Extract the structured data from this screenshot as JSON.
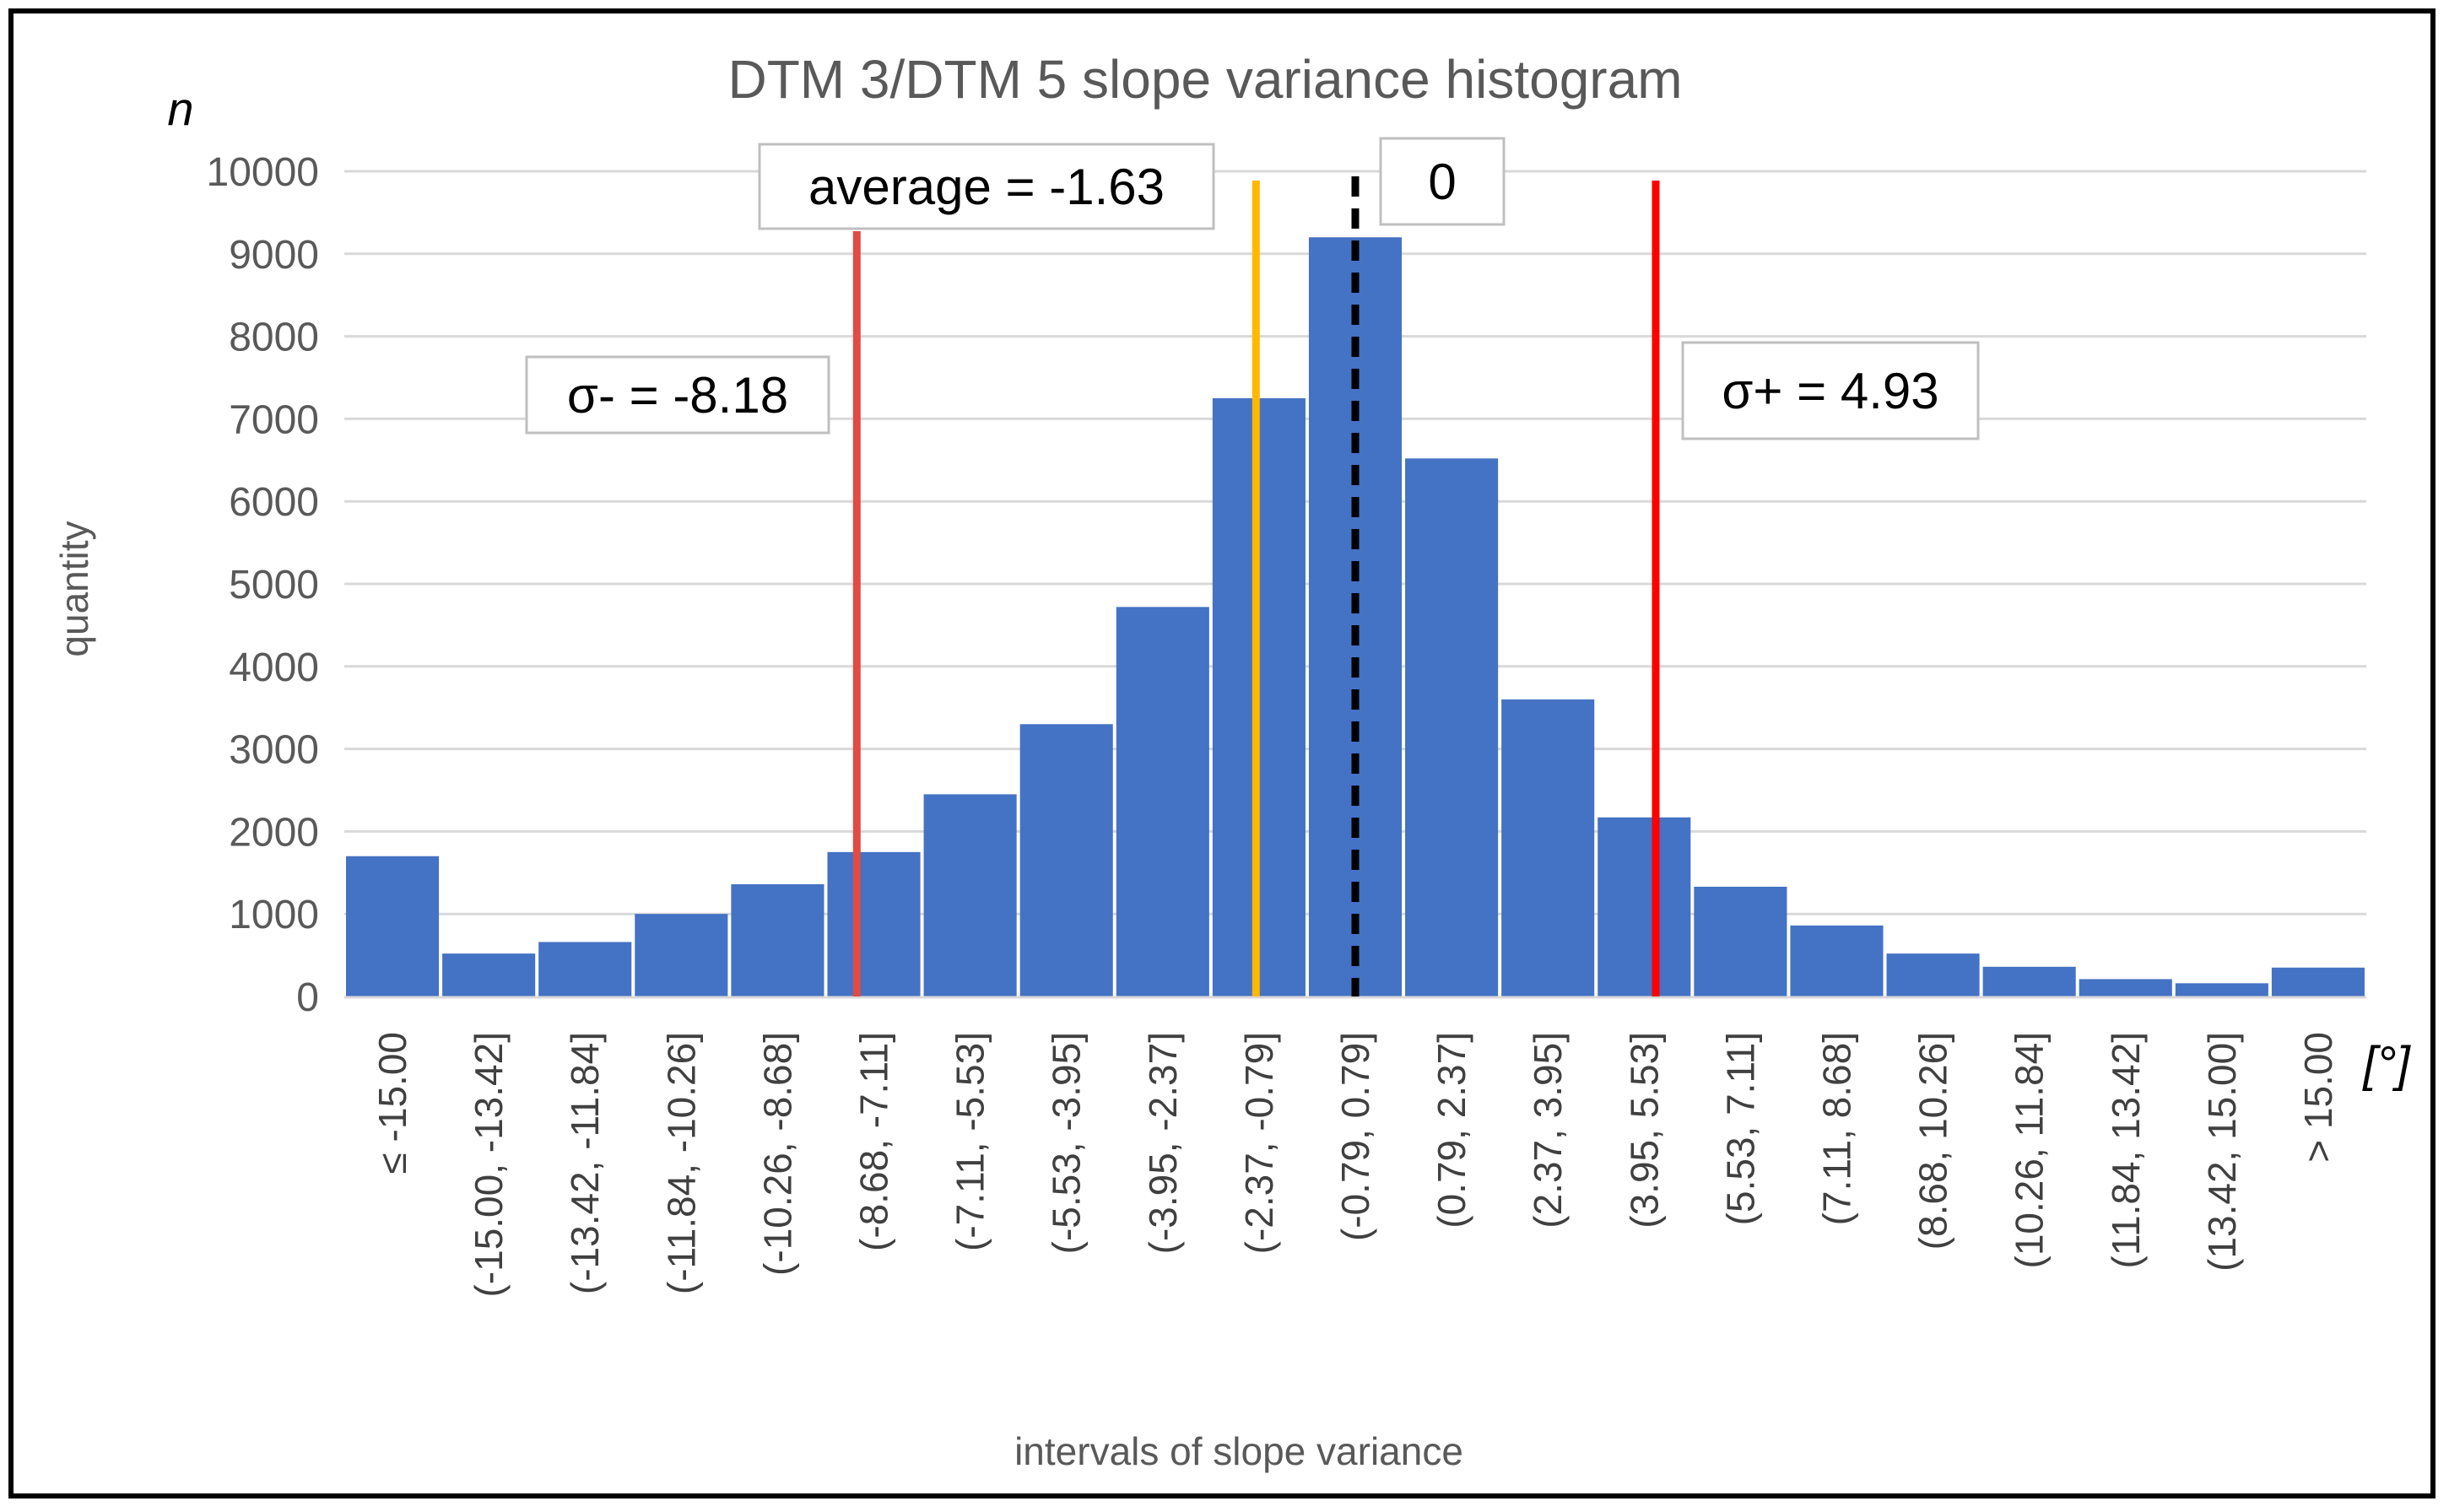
{
  "chart_data": {
    "type": "bar",
    "title": "DTM 3/DTM 5 slope variance histogram",
    "xlabel": "intervals of slope variance",
    "ylabel": "quantity",
    "y_unit_label": "n",
    "x_unit_label": "[°]",
    "ylim": [
      0,
      10000
    ],
    "yticks": [
      0,
      1000,
      2000,
      3000,
      4000,
      5000,
      6000,
      7000,
      8000,
      9000,
      10000
    ],
    "grid": true,
    "categories": [
      "≤ -15.00",
      "(-15.00, -13.42]",
      "(-13.42, -11.84]",
      "(-11.84, -10.26]",
      "(-10.26, -8.68]",
      "(-8.68, -7.11]",
      "(-7.11, -5.53]",
      "(-5.53, -3.95]",
      "(-3.95, -2.37]",
      "(-2.37, -0.79]",
      "(-0.79, 0.79]",
      "(0.79, 2.37]",
      "(2.37, 3.95]",
      "(3.95, 5.53]",
      "(5.53, 7.11]",
      "(7.11, 8.68]",
      "(8.68, 10.26]",
      "(10.26, 11.84]",
      "(11.84, 13.42]",
      "(13.42, 15.00]",
      "> 15.00"
    ],
    "values": [
      1700,
      520,
      660,
      1000,
      1360,
      1750,
      2450,
      3300,
      4720,
      7250,
      9200,
      6520,
      3600,
      2170,
      1330,
      860,
      520,
      360,
      210,
      160,
      350
    ],
    "color": "#4472C4",
    "reference_lines": [
      {
        "name": "sigma-minus",
        "value": -8.18,
        "color": "#E04B43",
        "style": "solid",
        "label": "σ- = -8.18"
      },
      {
        "name": "average",
        "value": -1.63,
        "color": "#FFB800",
        "style": "solid",
        "label": "average = -1.63"
      },
      {
        "name": "zero",
        "value": 0,
        "color": "#000000",
        "style": "dashed",
        "label": "0"
      },
      {
        "name": "sigma-plus",
        "value": 4.93,
        "color": "#FF0000",
        "style": "solid",
        "label": "σ+ = 4.93"
      }
    ],
    "bin_width_deg": 1.58
  }
}
